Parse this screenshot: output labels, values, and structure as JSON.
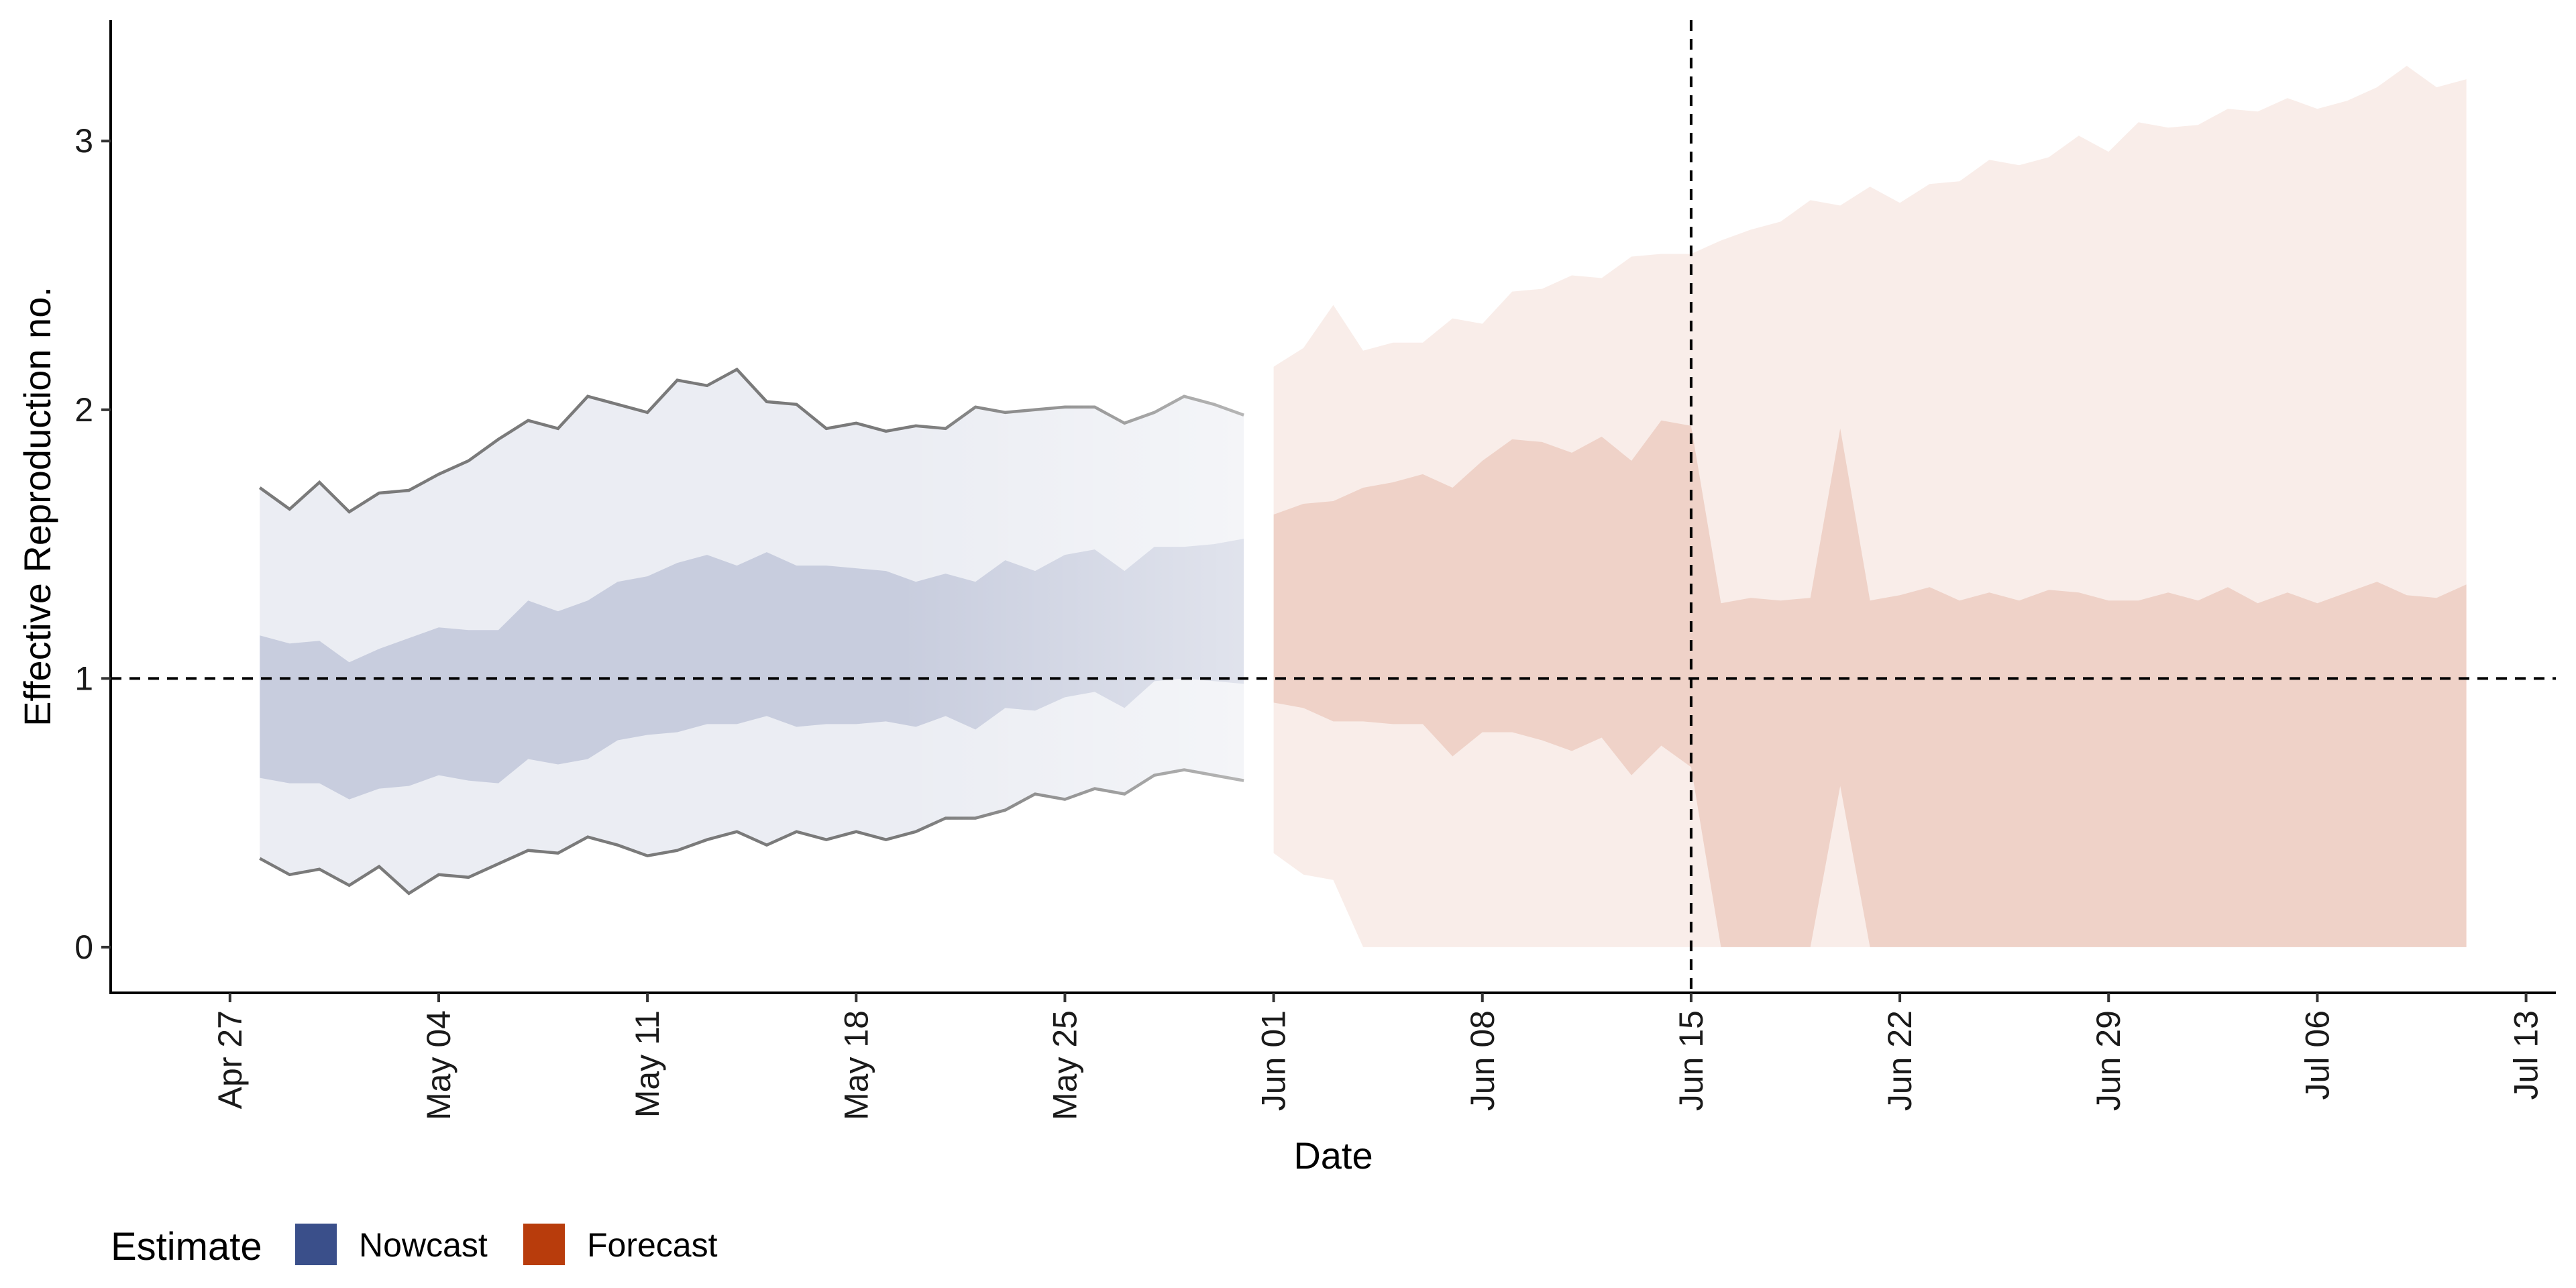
{
  "chart_data": {
    "type": "area",
    "xlabel": "Date",
    "ylabel": "Effective Reproduction no.",
    "ylim": [
      -0.17,
      3.45
    ],
    "xlim": [
      "2020-04-23",
      "2020-07-14"
    ],
    "yticks": [
      0,
      1,
      2,
      3
    ],
    "xticks": [
      {
        "date": "2020-04-27",
        "label": "Apr 27"
      },
      {
        "date": "2020-05-04",
        "label": "May 04"
      },
      {
        "date": "2020-05-11",
        "label": "May 11"
      },
      {
        "date": "2020-05-18",
        "label": "May 18"
      },
      {
        "date": "2020-05-25",
        "label": "May 25"
      },
      {
        "date": "2020-06-01",
        "label": "Jun 01"
      },
      {
        "date": "2020-06-08",
        "label": "Jun 08"
      },
      {
        "date": "2020-06-15",
        "label": "Jun 15"
      },
      {
        "date": "2020-06-22",
        "label": "Jun 22"
      },
      {
        "date": "2020-06-29",
        "label": "Jun 29"
      },
      {
        "date": "2020-07-06",
        "label": "Jul 06"
      },
      {
        "date": "2020-07-13",
        "label": "Jul 13"
      }
    ],
    "reference_lines": {
      "horizontal_y": 1,
      "vertical_date": "2020-06-15"
    },
    "grid": false,
    "legend": {
      "title": "Estimate",
      "position": "bottom-left",
      "items": [
        {
          "label": "Nowcast",
          "color": "#3a4f8a"
        },
        {
          "label": "Forecast",
          "color": "#b83c0c"
        }
      ]
    },
    "series": [
      {
        "estimate": "Nowcast",
        "color": "#3a4f8a",
        "start_date": "2020-04-28",
        "end_date": "2020-05-31",
        "outer_lower": [
          0.33,
          0.27,
          0.29,
          0.23,
          0.3,
          0.2,
          0.27,
          0.26,
          0.31,
          0.36,
          0.35,
          0.41,
          0.38,
          0.34,
          0.36,
          0.4,
          0.43,
          0.38,
          0.43,
          0.4,
          0.43,
          0.4,
          0.43,
          0.48,
          0.48,
          0.51,
          0.57,
          0.55,
          0.59,
          0.57,
          0.64,
          0.66,
          0.64,
          0.62
        ],
        "outer_upper": [
          1.71,
          1.63,
          1.73,
          1.62,
          1.69,
          1.7,
          1.76,
          1.81,
          1.89,
          1.96,
          1.93,
          2.05,
          2.02,
          1.99,
          2.11,
          2.09,
          2.15,
          2.03,
          2.02,
          1.93,
          1.95,
          1.92,
          1.94,
          1.93,
          2.01,
          1.99,
          2.0,
          2.01,
          2.01,
          1.95,
          1.99,
          2.05,
          2.02,
          1.98
        ],
        "inner_lower": [
          0.63,
          0.61,
          0.61,
          0.55,
          0.59,
          0.6,
          0.64,
          0.62,
          0.61,
          0.7,
          0.68,
          0.7,
          0.77,
          0.79,
          0.8,
          0.83,
          0.83,
          0.86,
          0.82,
          0.83,
          0.83,
          0.84,
          0.82,
          0.86,
          0.81,
          0.89,
          0.88,
          0.93,
          0.95,
          0.89,
          0.99,
          1.0,
          0.99,
          0.98
        ],
        "inner_upper": [
          1.16,
          1.13,
          1.14,
          1.06,
          1.11,
          1.15,
          1.19,
          1.18,
          1.18,
          1.29,
          1.25,
          1.29,
          1.36,
          1.38,
          1.43,
          1.46,
          1.42,
          1.47,
          1.42,
          1.42,
          1.41,
          1.4,
          1.36,
          1.39,
          1.36,
          1.44,
          1.4,
          1.46,
          1.48,
          1.4,
          1.49,
          1.49,
          1.5,
          1.52
        ]
      },
      {
        "estimate": "Forecast",
        "color": "#b83c0c",
        "start_date": "2020-06-01",
        "end_date": "2020-07-11",
        "outer_lower": [
          0.35,
          0.27,
          0.25,
          0.0,
          0,
          0,
          0,
          0,
          0,
          0,
          0,
          0,
          0,
          0,
          0,
          0,
          0,
          0,
          0,
          0,
          0,
          0,
          0,
          0,
          0,
          0,
          0,
          0,
          0,
          0,
          0,
          0,
          0,
          0,
          0,
          0,
          0,
          0,
          0,
          0,
          0
        ],
        "outer_upper": [
          2.16,
          2.23,
          2.39,
          2.22,
          2.25,
          2.25,
          2.34,
          2.32,
          2.44,
          2.45,
          2.5,
          2.49,
          2.57,
          2.58,
          2.58,
          2.63,
          2.67,
          2.7,
          2.78,
          2.76,
          2.83,
          2.77,
          2.84,
          2.85,
          2.93,
          2.91,
          2.94,
          3.02,
          2.96,
          3.07,
          3.05,
          3.06,
          3.12,
          3.11,
          3.16,
          3.12,
          3.15,
          3.2,
          3.28,
          3.2,
          3.23
        ],
        "inner_lower": [
          0.91,
          0.89,
          0.84,
          0.84,
          0.83,
          0.83,
          0.71,
          0.8,
          0.8,
          0.77,
          0.73,
          0.78,
          0.64,
          0.75,
          0.67,
          0.0,
          0.0,
          0.0,
          0.0,
          0.6,
          0.0,
          0.0,
          0,
          0,
          0,
          0,
          0,
          0,
          0,
          0,
          0,
          0,
          0,
          0,
          0,
          0,
          0,
          0,
          0,
          0,
          0
        ],
        "inner_upper": [
          1.61,
          1.65,
          1.66,
          1.71,
          1.73,
          1.76,
          1.71,
          1.81,
          1.89,
          1.88,
          1.84,
          1.9,
          1.81,
          1.96,
          1.94,
          1.28,
          1.3,
          1.29,
          1.3,
          1.93,
          1.29,
          1.31,
          1.34,
          1.29,
          1.32,
          1.29,
          1.33,
          1.32,
          1.29,
          1.29,
          1.32,
          1.29,
          1.34,
          1.28,
          1.32,
          1.28,
          1.32,
          1.36,
          1.31,
          1.3,
          1.35
        ]
      }
    ]
  }
}
